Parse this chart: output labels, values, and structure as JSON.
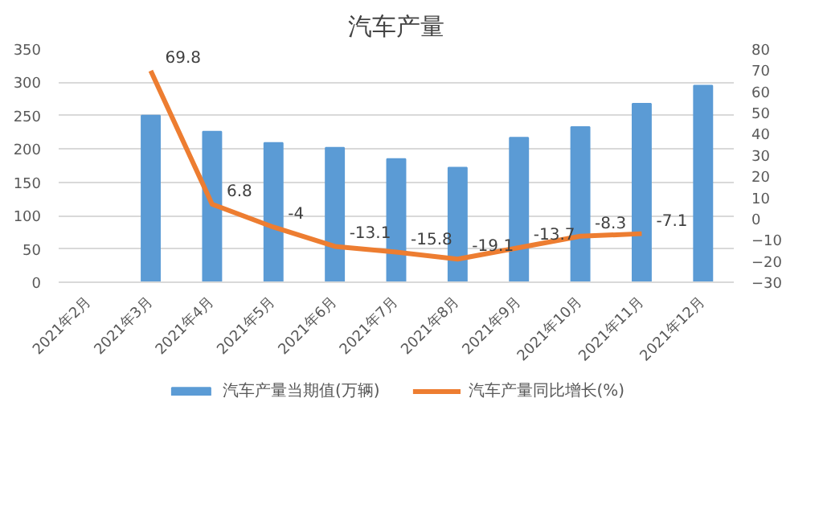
{
  "chart_data": {
    "type": "bar",
    "title": "汽车产量",
    "categories": [
      "2021年2月",
      "2021年3月",
      "2021年4月",
      "2021年5月",
      "2021年6月",
      "2021年7月",
      "2021年8月",
      "2021年9月",
      "2021年10月",
      "2021年11月",
      "2021年12月"
    ],
    "series": [
      {
        "name": "汽车产量当期值(万辆)",
        "color": "#5b9bd5",
        "values": [
          null,
          250,
          226,
          209,
          202,
          185,
          172,
          217,
          233,
          268,
          295
        ]
      },
      {
        "name": "汽车产量同比增长(%)",
        "type": "line",
        "axis": "y2",
        "color": "#ed7d31",
        "values": [
          null,
          69.8,
          6.8,
          -4,
          -13.1,
          -15.8,
          -19.1,
          -13.7,
          -8.3,
          -7.1,
          null
        ],
        "value_labels": [
          null,
          "69.8",
          "6.8",
          "-4",
          "-13.1",
          "-15.8",
          "-19.1",
          "-13.7",
          "-8.3",
          "-7.1",
          null
        ]
      }
    ],
    "ylim": [
      0,
      350
    ],
    "yticks": [
      0,
      50,
      100,
      150,
      200,
      250,
      300,
      350
    ],
    "y2lim": [
      -30,
      80
    ],
    "y2ticks": [
      -30,
      -20,
      -10,
      0,
      10,
      20,
      30,
      40,
      50,
      60,
      70,
      80
    ],
    "grid": "y",
    "legend": "bottom",
    "marker": "none",
    "line_style": "solid"
  }
}
